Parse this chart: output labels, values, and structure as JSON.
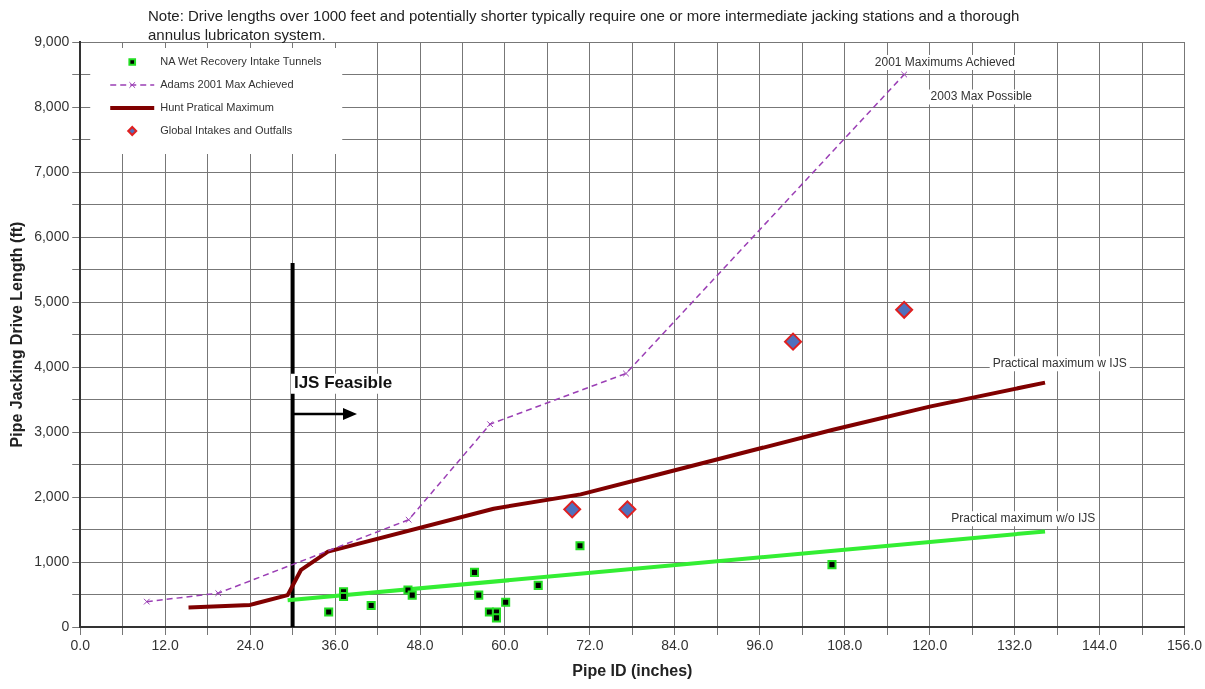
{
  "chart_data": {
    "type": "scatter",
    "title": "Note: Drive lengths over 1000 feet and potentially shorter typically require one or more intermediate jacking stations and a thorough annulus lubricaton system.",
    "xlabel": "Pipe ID (inches)",
    "ylabel": "Pipe Jacking Drive Length (ft)",
    "xlim": [
      0,
      156
    ],
    "ylim": [
      0,
      9000
    ],
    "xticks": [
      {
        "value": 0,
        "label": "0.0"
      },
      {
        "value": 6,
        "label": null
      },
      {
        "value": 12,
        "label": "12.0"
      },
      {
        "value": 18,
        "label": null
      },
      {
        "value": 24,
        "label": "24.0"
      },
      {
        "value": 30,
        "label": null
      },
      {
        "value": 36,
        "label": "36.0"
      },
      {
        "value": 42,
        "label": null
      },
      {
        "value": 48,
        "label": "48.0"
      },
      {
        "value": 54,
        "label": null
      },
      {
        "value": 60,
        "label": "60.0"
      },
      {
        "value": 66,
        "label": null
      },
      {
        "value": 72,
        "label": "72.0"
      },
      {
        "value": 78,
        "label": null
      },
      {
        "value": 84,
        "label": "84.0"
      },
      {
        "value": 90,
        "label": null
      },
      {
        "value": 96,
        "label": "96.0"
      },
      {
        "value": 102,
        "label": null
      },
      {
        "value": 108,
        "label": "108.0"
      },
      {
        "value": 114,
        "label": null
      },
      {
        "value": 120,
        "label": "120.0"
      },
      {
        "value": 126,
        "label": null
      },
      {
        "value": 132,
        "label": "132.0"
      },
      {
        "value": 138,
        "label": null
      },
      {
        "value": 144,
        "label": "144.0"
      },
      {
        "value": 150,
        "label": null
      },
      {
        "value": 156,
        "label": "156.0"
      }
    ],
    "yticks": [
      0,
      {
        "value": 500,
        "label": null
      },
      {
        "value": 1000,
        "label": "1,000"
      },
      {
        "value": 1500,
        "label": null
      },
      {
        "value": 2000,
        "label": "2,000"
      },
      {
        "value": 2500,
        "label": null
      },
      {
        "value": 3000,
        "label": "3,000"
      },
      {
        "value": 3500,
        "label": null
      },
      {
        "value": 4000,
        "label": "4,000"
      },
      {
        "value": 4500,
        "label": null
      },
      {
        "value": 5000,
        "label": "5,000"
      },
      {
        "value": 5500,
        "label": null
      },
      {
        "value": 6000,
        "label": "6,000"
      },
      {
        "value": 6500,
        "label": null
      },
      {
        "value": 7000,
        "label": "7,000"
      },
      {
        "value": 7500,
        "label": null
      },
      {
        "value": 8000,
        "label": "8,000"
      },
      {
        "value": 8500,
        "label": null
      },
      {
        "value": 9000,
        "label": "9,000"
      }
    ],
    "grid": true,
    "legend": "top left",
    "series": [
      {
        "name": "NA Wet Recovery Intake Tunnels",
        "type": "scatter",
        "marker": "square",
        "color": "#000000",
        "x": [
          35.1,
          37.2,
          37.2,
          41.1,
          46.3,
          46.9,
          55.7,
          56.3,
          57.8,
          58.8,
          58.8,
          60.1,
          64.7,
          70.6,
          106.2
        ],
        "values": [
          230,
          540,
          470,
          330,
          570,
          490,
          840,
          490,
          230,
          230,
          140,
          380,
          640,
          1250,
          960
        ]
      },
      {
        "name": "Adams 2001 Max Achieved",
        "type": "line",
        "marker": "cross",
        "line_style": "dashed",
        "color": "#9b3fb5",
        "x": [
          9.4,
          19.5,
          46.4,
          57.9,
          77.1,
          116.4
        ],
        "values": [
          390,
          520,
          1650,
          3120,
          3900,
          8500
        ]
      },
      {
        "name": "Hunt Pratical Maximum",
        "type": "line",
        "marker": "none",
        "line_style": "solid",
        "color": "#800000",
        "x": [
          15.3,
          24,
          29.3,
          31.2,
          35,
          58.4,
          70.7,
          82.5,
          106.2,
          120,
          136.3
        ],
        "values": [
          300,
          340,
          490,
          880,
          1160,
          1820,
          2040,
          2370,
          3030,
          3390,
          3760
        ]
      },
      {
        "name": "Global Intakes and Outfalls",
        "type": "scatter",
        "marker": "diamond",
        "color": "#4f71be",
        "x": [
          69.5,
          77.3,
          100.7,
          116.4
        ],
        "values": [
          1810,
          1810,
          4390,
          4880
        ]
      },
      {
        "type": "line",
        "marker": "none",
        "line_style": "solid",
        "color": "#33ee33",
        "x": [
          29.3,
          136.3
        ],
        "values": [
          410,
          1470
        ]
      },
      {
        "type": "line",
        "marker": "none",
        "line_style": "solid",
        "color": "#000000",
        "x": [
          30,
          30
        ],
        "values": [
          0,
          5600
        ]
      }
    ],
    "annotations": [
      "IJS Feasible",
      "2001 Maximums Achieved",
      "2003 Max Possible",
      "Practical maximum w IJS",
      "Practical maximum w/o IJS"
    ]
  }
}
